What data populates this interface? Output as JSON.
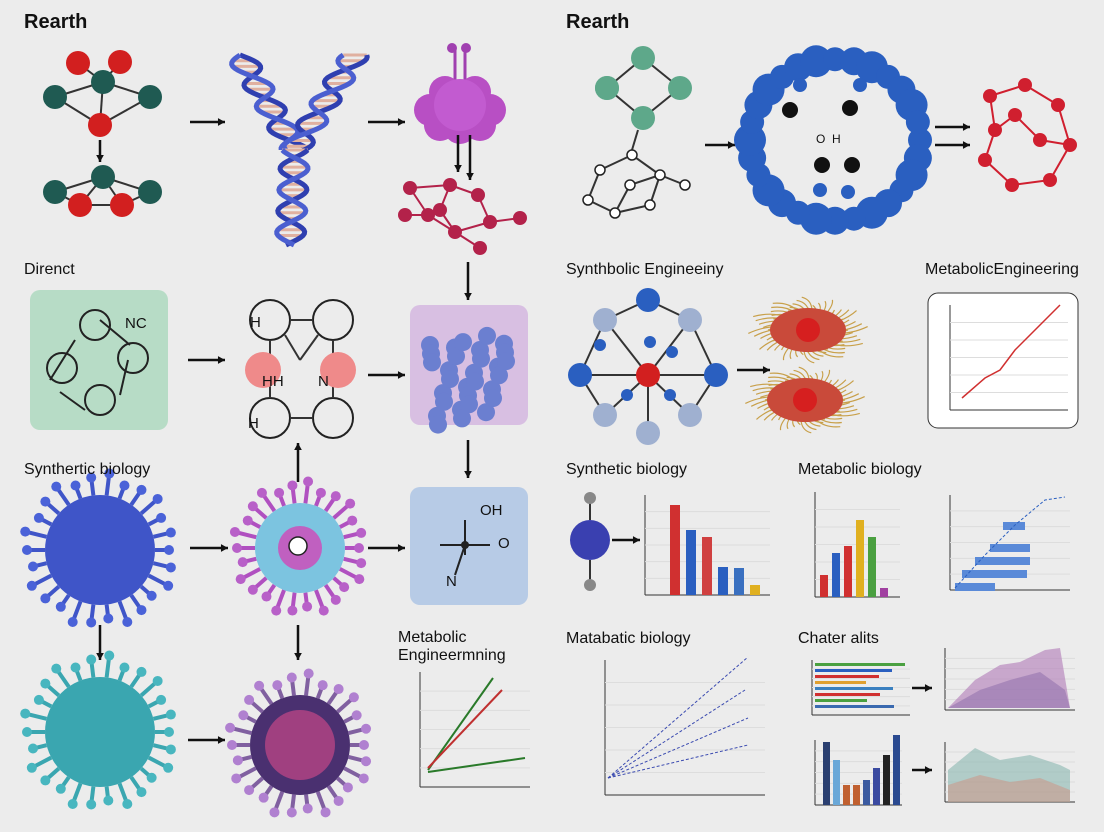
{
  "titles": [
    "Rearth",
    "Rearth",
    "Direnct",
    "Synthbolic Engineeiny",
    "MetabolicEngineering",
    "Synthertic biology",
    "Synthetic biology",
    "Metabolic biology",
    "Metabolic",
    "Engineermning",
    "Matabatic biology",
    "Chater alits"
  ],
  "molecule_labels": [
    "NC",
    "H",
    "HH",
    "N",
    "H",
    "OH",
    "O",
    "N",
    "O",
    "H"
  ]
}
